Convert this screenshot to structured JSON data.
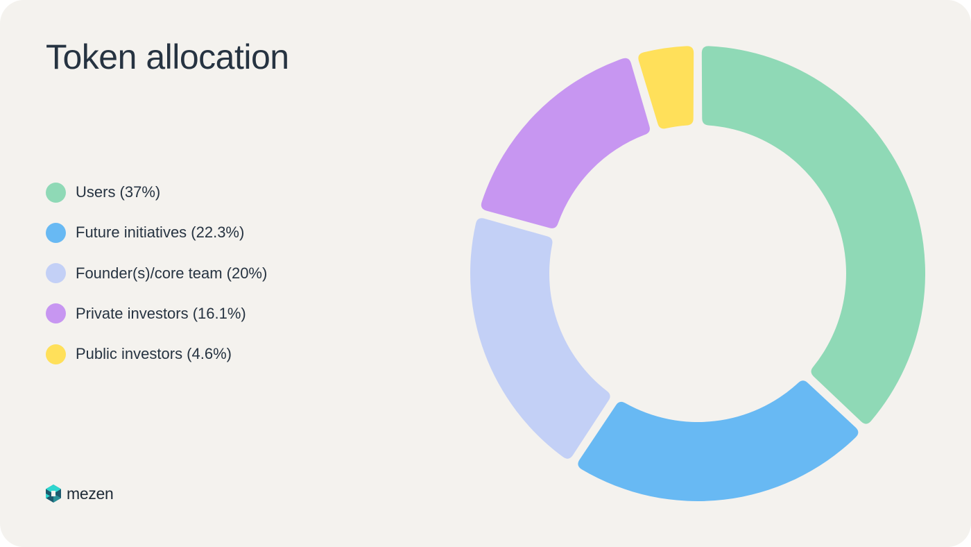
{
  "chart_data": {
    "type": "pie",
    "variant": "donut",
    "title": "Token allocation",
    "legend_position": "left",
    "slices": [
      {
        "label": "Users (37%)",
        "value": 37,
        "color": "#8fd9b6"
      },
      {
        "label": "Future initiatives (22.3%)",
        "value": 22.3,
        "color": "#68b9f3"
      },
      {
        "label": "Founder(s)/core team (20%)",
        "value": 20,
        "color": "#c3d0f6"
      },
      {
        "label": "Private investors (16.1%)",
        "value": 16.1,
        "color": "#c796f1"
      },
      {
        "label": "Public investors (4.6%)",
        "value": 4.6,
        "color": "#ffe05a"
      }
    ]
  },
  "brand": {
    "name": "mezen",
    "icon": "hexagon-cube-logo-icon",
    "colors": [
      "#1e5a6e",
      "#2fd6cf"
    ]
  },
  "colors": {
    "background": "#f4f2ee",
    "text": "#263341"
  }
}
